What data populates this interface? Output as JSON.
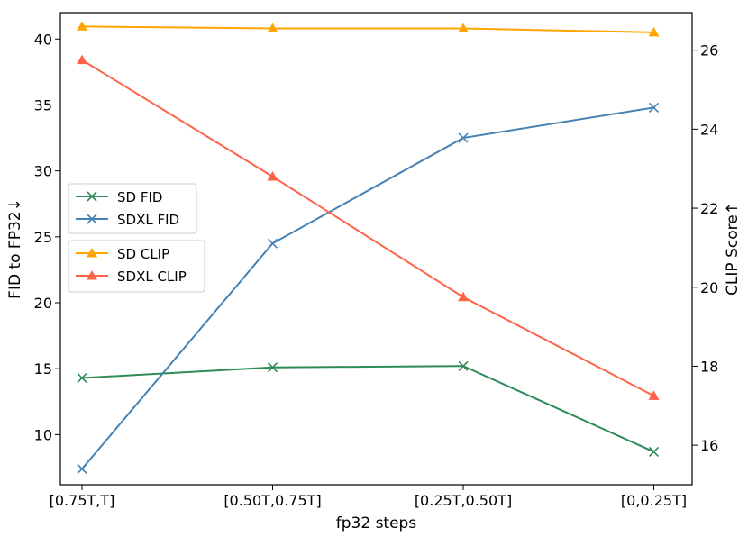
{
  "chart_data": {
    "type": "line",
    "categories": [
      "[0.75T,T]",
      "[0.50T,0.75T]",
      "[0.25T,0.50T]",
      "[0,0.25T]"
    ],
    "xlabel": "fp32 steps",
    "ylabel_left": "FID to FP32↓",
    "ylabel_right": "CLIP Score↑",
    "ylim_left": [
      6.2,
      42.0
    ],
    "yticks_left": [
      10,
      15,
      20,
      25,
      30,
      35,
      40
    ],
    "ylim_right": [
      15.0,
      26.95
    ],
    "yticks_right": [
      16,
      18,
      20,
      22,
      24,
      26
    ],
    "grid": false,
    "series": [
      {
        "name": "SD FID",
        "axis": "left",
        "marker": "x",
        "color": "#2e8b57",
        "values": [
          14.3,
          15.1,
          15.2,
          8.7
        ]
      },
      {
        "name": "SDXL FID",
        "axis": "left",
        "marker": "x",
        "color": "#4682b4",
        "values": [
          7.4,
          24.5,
          32.5,
          34.8
        ]
      },
      {
        "name": "SD CLIP",
        "axis": "right",
        "marker": "triangle",
        "color": "#ffa500",
        "values": [
          26.6,
          26.55,
          26.55,
          26.45
        ]
      },
      {
        "name": "SDXL CLIP",
        "axis": "right",
        "marker": "triangle",
        "color": "#ff6347",
        "values": [
          25.75,
          22.8,
          19.75,
          17.25
        ]
      }
    ],
    "legends": [
      {
        "placement": "center-left",
        "entries": [
          "SD FID",
          "SDXL FID"
        ]
      },
      {
        "placement": "center-left",
        "entries": [
          "SD CLIP",
          "SDXL CLIP"
        ]
      }
    ]
  }
}
